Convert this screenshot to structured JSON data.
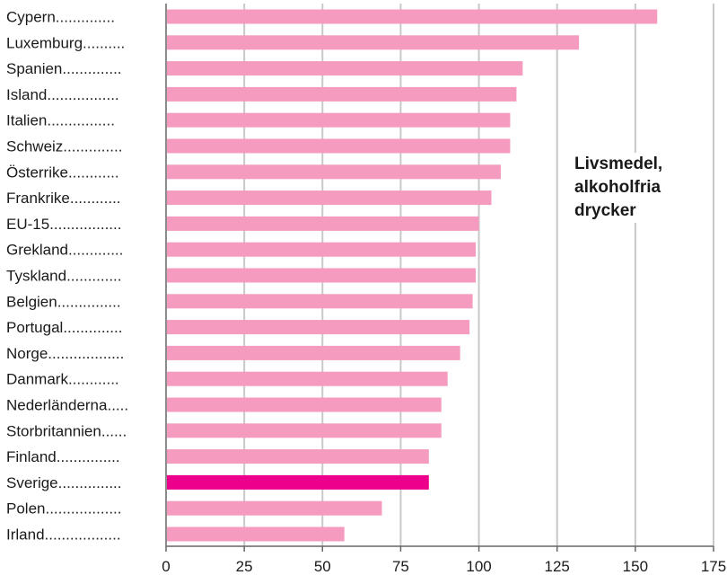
{
  "chart_data": {
    "type": "bar",
    "orientation": "horizontal",
    "annotation": [
      "Livsmedel,",
      "alkoholfria",
      "drycker"
    ],
    "categories": [
      "Cypern..............",
      "Luxemburg..........",
      "Spanien..............",
      "Island.................",
      "Italien................",
      "Schweiz..............",
      "Österrike............",
      "Frankrike............",
      "EU-15.................",
      "Grekland.............",
      "Tyskland.............",
      "Belgien...............",
      "Portugal..............",
      "Norge..................",
      "Danmark............",
      "Nederländerna.....",
      "Storbritannien......",
      "Finland...............",
      "Sverige...............",
      "Polen..................",
      "Irland.................."
    ],
    "values": [
      157,
      132,
      114,
      112,
      110,
      110,
      107,
      104,
      100,
      99,
      99,
      98,
      97,
      94,
      90,
      88,
      88,
      84,
      84,
      69,
      57
    ],
    "highlight_category_index": 18,
    "xlim": [
      0,
      175
    ],
    "xticks": [
      "0",
      "25",
      "50",
      "75",
      "100",
      "125",
      "150",
      "175"
    ],
    "grid": "vertical",
    "colors": {
      "bar": "#f59bbf",
      "highlight": "#ec008c",
      "grid": "#c8c8c8",
      "axis": "#666666"
    }
  }
}
